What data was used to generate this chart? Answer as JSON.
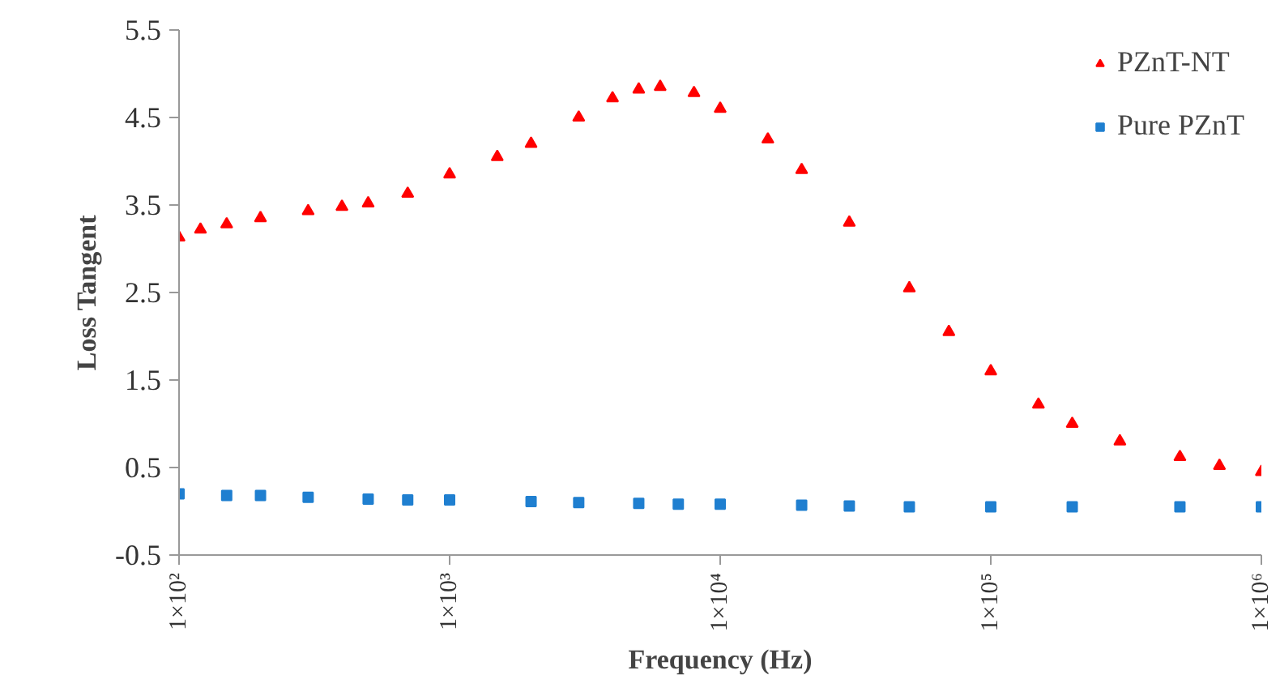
{
  "chart_data": {
    "type": "scatter",
    "xlabel": "Frequency (Hz)",
    "ylabel": "Loss Tangent",
    "log": "x",
    "grid": false,
    "legend": "top right",
    "xlim": [
      100,
      1000000
    ],
    "xticks": [
      {
        "value": 100,
        "label": "1×10²"
      },
      {
        "value": 1000,
        "label": "1×10³"
      },
      {
        "value": 10000,
        "label": "1×10⁴"
      },
      {
        "value": 100000,
        "label": "1×10⁵"
      },
      {
        "value": 1000000,
        "label": "1×10⁶"
      }
    ],
    "ylim": [
      -0.5,
      5.5
    ],
    "yticks": [
      -0.5,
      0.5,
      1.5,
      2.5,
      3.5,
      4.5,
      5.5
    ],
    "series": [
      {
        "name": "PZnT-NT",
        "color": "#ff0000",
        "marker": "triangle",
        "x": [
          100,
          120,
          150,
          200,
          300,
          400,
          500,
          700,
          1000,
          1500,
          2000,
          3000,
          4000,
          5000,
          6000,
          8000,
          10000,
          15000,
          20000,
          30000,
          50000,
          70000,
          100000,
          150000,
          200000,
          300000,
          500000,
          700000,
          1000000
        ],
        "values": [
          3.13,
          3.22,
          3.28,
          3.35,
          3.43,
          3.48,
          3.52,
          3.63,
          3.85,
          4.05,
          4.2,
          4.5,
          4.72,
          4.82,
          4.85,
          4.78,
          4.6,
          4.25,
          3.9,
          3.3,
          2.55,
          2.05,
          1.6,
          1.22,
          1.0,
          0.8,
          0.62,
          0.52,
          0.45
        ]
      },
      {
        "name": "Pure PZnT",
        "color": "#1f7fd0",
        "marker": "square",
        "x": [
          100,
          150,
          200,
          300,
          500,
          700,
          1000,
          2000,
          3000,
          5000,
          7000,
          10000,
          20000,
          30000,
          50000,
          100000,
          200000,
          500000,
          1000000
        ],
        "values": [
          0.2,
          0.18,
          0.18,
          0.16,
          0.14,
          0.13,
          0.13,
          0.11,
          0.1,
          0.09,
          0.08,
          0.08,
          0.07,
          0.06,
          0.05,
          0.05,
          0.05,
          0.05,
          0.05
        ]
      }
    ]
  }
}
